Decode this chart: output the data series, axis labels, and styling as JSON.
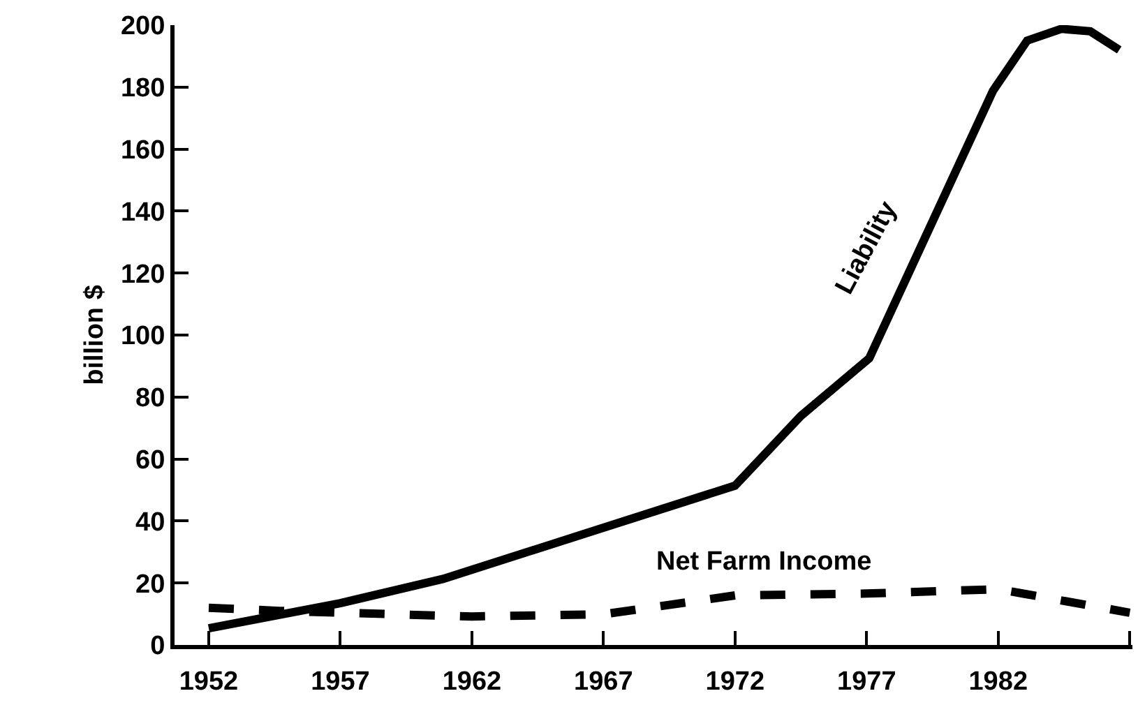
{
  "chart_data": {
    "type": "line",
    "ylabel": "billion $",
    "xlim": [
      1950.7,
      1987.1
    ],
    "xticks": [
      1952,
      1957,
      1962,
      1967,
      1972,
      1977,
      1982,
      {
        "value": 1987,
        "label": null
      }
    ],
    "ylim": [
      0,
      200
    ],
    "yticks": [
      0,
      20,
      40,
      60,
      80,
      100,
      120,
      140,
      160,
      180,
      200
    ],
    "marker": "none",
    "series": [
      {
        "color": "#000000",
        "line_style": "solid",
        "x": [
          1952,
          1957,
          1960.9,
          1972,
          1974.5,
          1977.1,
          1981.8,
          1983.1,
          1984.4,
          1985.5,
          1986.6
        ],
        "values": [
          5.4,
          13.5,
          21.3,
          51.4,
          73.9,
          92.5,
          178.8,
          195,
          198.8,
          198,
          192
        ]
      },
      {
        "color": "#000000",
        "line_style": "dashed",
        "x": [
          1952,
          1954.7,
          1957,
          1962,
          1967,
          1972,
          1977,
          1982,
          1983,
          1987
        ],
        "values": [
          12,
          11,
          10.4,
          9.2,
          9.9,
          16,
          16.6,
          18,
          16.5,
          10.4
        ]
      }
    ],
    "annotations": [
      "Liability",
      "Net Farm Income"
    ]
  }
}
